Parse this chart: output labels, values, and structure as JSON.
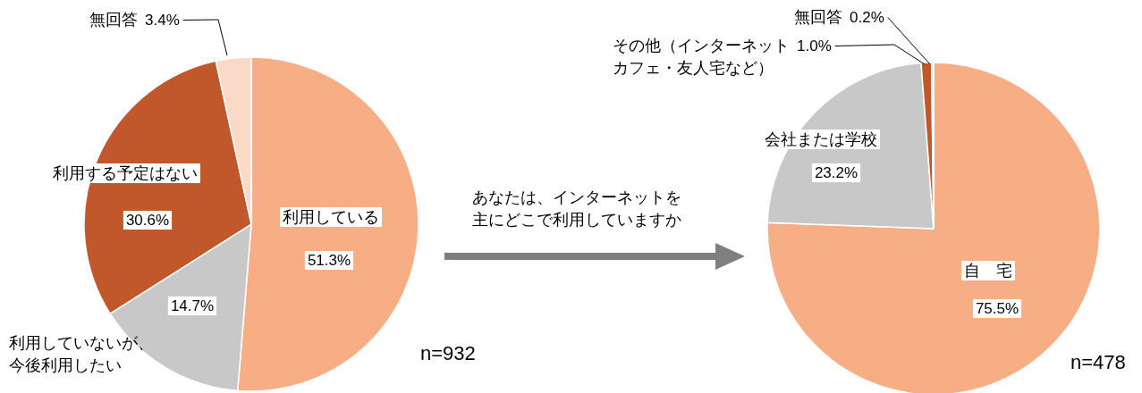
{
  "chart_data": [
    {
      "type": "pie",
      "categories": [
        "利用している",
        "利用していないが、今後利用したい",
        "利用する予定はない",
        "無回答"
      ],
      "values": [
        51.3,
        14.7,
        30.6,
        3.4
      ],
      "colors": [
        "#f7ae85",
        "#c8c8c8",
        "#c0582b",
        "#fadac7"
      ],
      "value_labels": [
        "51.3%",
        "14.7%",
        "30.6%",
        "3.4%"
      ],
      "annotations": [
        "n=932"
      ]
    },
    {
      "type": "pie",
      "categories": [
        "自　宅",
        "会社または学校",
        "その他（インターネットカフェ・友人宅など）",
        "無回答"
      ],
      "values": [
        75.5,
        23.2,
        1.0,
        0.2
      ],
      "colors": [
        "#f7ae85",
        "#c8c8c8",
        "#c0582b",
        "#fadac7"
      ],
      "value_labels": [
        "75.5%",
        "23.2%",
        "1.0%",
        "0.2%"
      ],
      "annotations": [
        "あなたは、インターネットを主にどこで利用していますか",
        "n=478"
      ]
    }
  ]
}
